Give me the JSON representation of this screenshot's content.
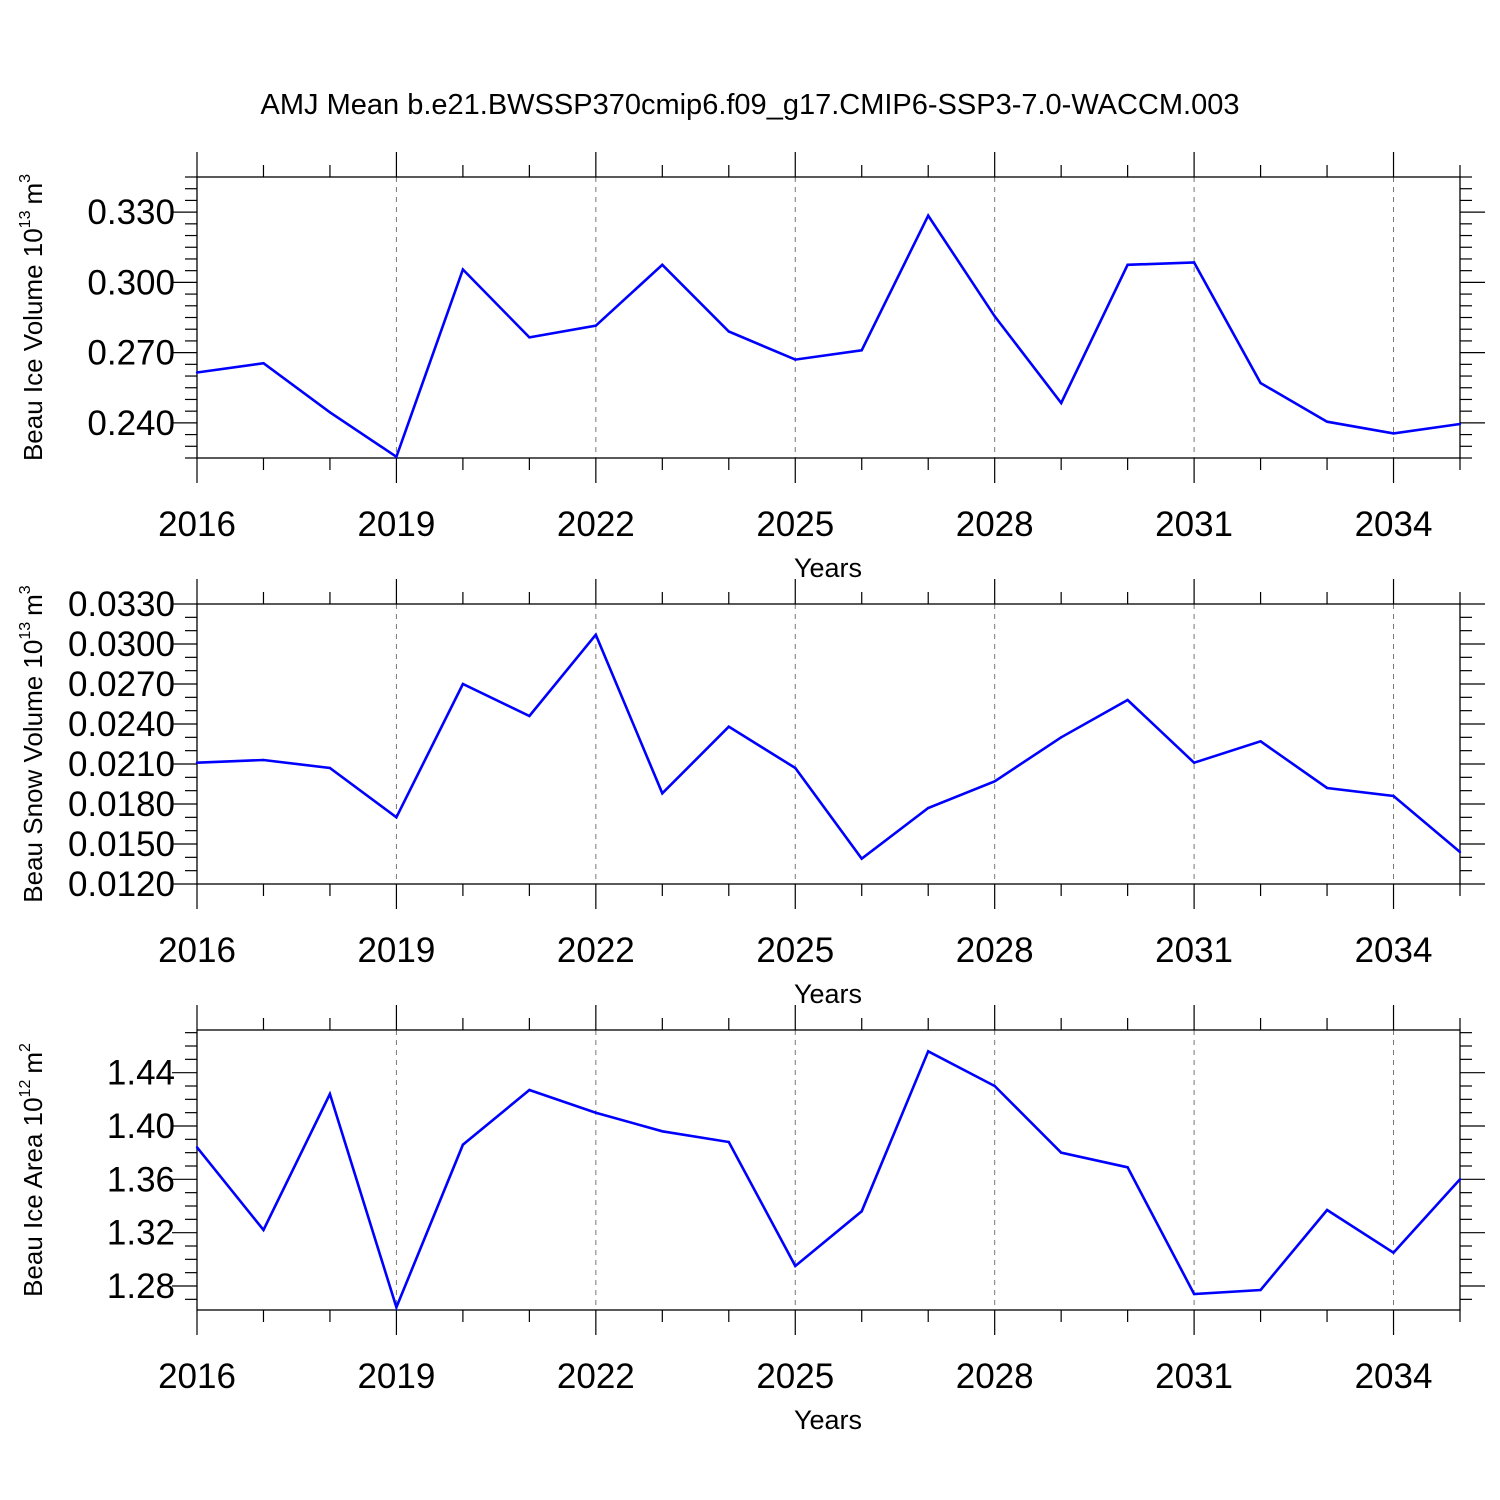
{
  "title": "AMJ Mean b.e21.BWSSP370cmip6.f09_g17.CMIP6-SSP3-7.0-WACCM.003",
  "line_color": "#0000ff",
  "chart_data": [
    {
      "type": "line",
      "ylabel": "Beau Ice Volume 10",
      "ylabel_exponent": "13",
      "ylabel_unit": "m",
      "ylabel_unit_exponent": "3",
      "xlabel": "Years",
      "xlim": [
        2016,
        2035
      ],
      "ylim": [
        0.225,
        0.345
      ],
      "x_ticks": [
        2016,
        2019,
        2022,
        2025,
        2028,
        2031,
        2034
      ],
      "x_tick_labels": [
        "2016",
        "2019",
        "2022",
        "2025",
        "2028",
        "2031",
        "2034"
      ],
      "y_ticks": [
        0.24,
        0.27,
        0.3,
        0.33
      ],
      "y_tick_labels": [
        "0.240",
        "0.270",
        "0.300",
        "0.330"
      ],
      "y_minor_step": 0.005,
      "x": [
        2016,
        2017,
        2018,
        2019,
        2020,
        2021,
        2022,
        2023,
        2024,
        2025,
        2026,
        2027,
        2028,
        2029,
        2030,
        2031,
        2032,
        2033,
        2034,
        2035
      ],
      "values": [
        0.2615,
        0.2655,
        0.2445,
        0.2255,
        0.3055,
        0.2765,
        0.2815,
        0.3075,
        0.279,
        0.267,
        0.271,
        0.3285,
        0.2855,
        0.2485,
        0.3075,
        0.3085,
        0.257,
        0.2405,
        0.2355,
        0.2395
      ]
    },
    {
      "type": "line",
      "ylabel": "Beau Snow Volume 10",
      "ylabel_exponent": "13",
      "ylabel_unit": "m",
      "ylabel_unit_exponent": "3",
      "xlabel": "Years",
      "xlim": [
        2016,
        2035
      ],
      "ylim": [
        0.012,
        0.033
      ],
      "x_ticks": [
        2016,
        2019,
        2022,
        2025,
        2028,
        2031,
        2034
      ],
      "x_tick_labels": [
        "2016",
        "2019",
        "2022",
        "2025",
        "2028",
        "2031",
        "2034"
      ],
      "y_ticks": [
        0.012,
        0.015,
        0.018,
        0.021,
        0.024,
        0.027,
        0.03,
        0.033
      ],
      "y_tick_labels": [
        "0.0120",
        "0.0150",
        "0.0180",
        "0.0210",
        "0.0240",
        "0.0270",
        "0.0300",
        "0.0330"
      ],
      "y_minor_step": 0.001,
      "x": [
        2016,
        2017,
        2018,
        2019,
        2020,
        2021,
        2022,
        2023,
        2024,
        2025,
        2026,
        2027,
        2028,
        2029,
        2030,
        2031,
        2032,
        2033,
        2034,
        2035
      ],
      "values": [
        0.0211,
        0.0213,
        0.0207,
        0.017,
        0.027,
        0.0246,
        0.0307,
        0.0188,
        0.0238,
        0.0207,
        0.0139,
        0.0177,
        0.0197,
        0.023,
        0.0258,
        0.0211,
        0.0227,
        0.0192,
        0.0186,
        0.0144
      ]
    },
    {
      "type": "line",
      "ylabel": "Beau Ice Area 10",
      "ylabel_exponent": "12",
      "ylabel_unit": "m",
      "ylabel_unit_exponent": "2",
      "xlabel": "Years",
      "xlim": [
        2016,
        2035
      ],
      "ylim": [
        1.262,
        1.472
      ],
      "x_ticks": [
        2016,
        2019,
        2022,
        2025,
        2028,
        2031,
        2034
      ],
      "x_tick_labels": [
        "2016",
        "2019",
        "2022",
        "2025",
        "2028",
        "2031",
        "2034"
      ],
      "y_ticks": [
        1.28,
        1.32,
        1.36,
        1.4,
        1.44
      ],
      "y_tick_labels": [
        "1.28",
        "1.32",
        "1.36",
        "1.40",
        "1.44"
      ],
      "y_minor_step": 0.01,
      "x": [
        2016,
        2017,
        2018,
        2019,
        2020,
        2021,
        2022,
        2023,
        2024,
        2025,
        2026,
        2027,
        2028,
        2029,
        2030,
        2031,
        2032,
        2033,
        2034,
        2035
      ],
      "values": [
        1.384,
        1.322,
        1.424,
        1.264,
        1.386,
        1.427,
        1.41,
        1.396,
        1.388,
        1.295,
        1.336,
        1.456,
        1.43,
        1.38,
        1.369,
        1.274,
        1.277,
        1.337,
        1.305,
        1.36
      ]
    }
  ]
}
